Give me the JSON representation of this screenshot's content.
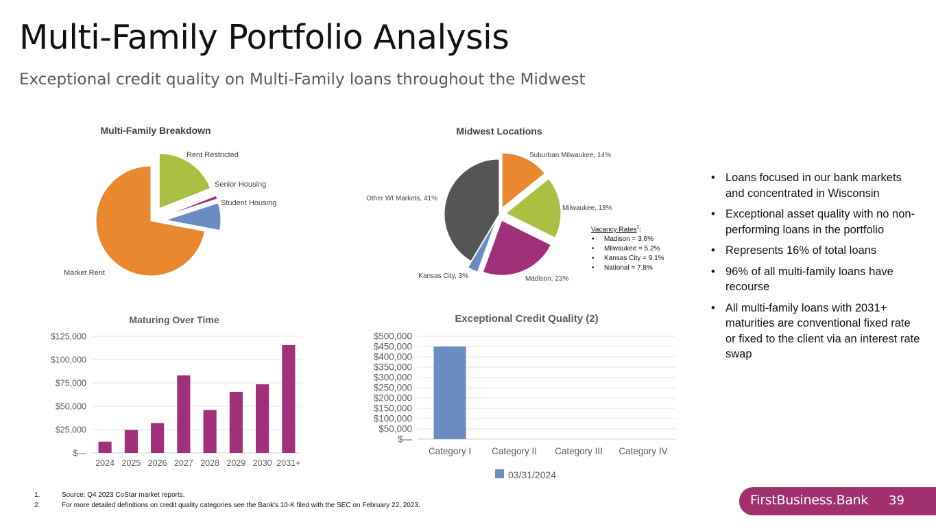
{
  "slide": {
    "title": "Multi-Family Portfolio Analysis",
    "subtitle": "Exceptional credit quality on Multi-Family loans throughout the Midwest",
    "page_number": "39",
    "brand": "FirstBusiness.Bank"
  },
  "bullets": [
    "Loans focused in our bank markets and concentrated in Wisconsin",
    "Exceptional asset quality with no non-performing loans in the portfolio",
    "Represents 16% of total loans",
    "96% of all multi-family loans have recourse",
    "All multi-family loans with 2031+ maturities are conventional fixed rate or fixed to the client via an interest rate swap"
  ],
  "vacancy": {
    "heading": "Vacancy Rates",
    "superscript": "1",
    "heading_suffix": ":",
    "items": [
      "Madison = 3.6%",
      "Milwaukee = 5.2%",
      "Kansas City = 9.1%",
      "National = 7.8%"
    ]
  },
  "footnotes": [
    {
      "num": "1.",
      "text": "Source: Q4 2023 CoStar market reports."
    },
    {
      "num": "2.",
      "text": "For more detailed definitions on credit quality categories see the Bank's 10-K filed with the SEC on February 22, 2023."
    }
  ],
  "colors": {
    "orange": "#e8872e",
    "green": "#a9c043",
    "purple": "#a0307a",
    "blue": "#6b8cc0",
    "gray": "#555555",
    "brand": "#a1306f"
  },
  "chart_data": [
    {
      "type": "pie",
      "title": "Multi-Family Breakdown",
      "categories": [
        "Rent Restricted",
        "Senior Housing",
        "Student Housing",
        "Market Rent"
      ],
      "values": [
        19,
        1,
        8,
        72
      ],
      "colors": [
        "#a9c043",
        "#a0307a",
        "#6b8cc0",
        "#e8872e"
      ]
    },
    {
      "type": "pie",
      "title": "Midwest Locations",
      "categories": [
        "Suburban Milwaukee",
        "Milwaukee",
        "Madison",
        "Kansas City",
        "Other WI Markets"
      ],
      "values": [
        14,
        18,
        23,
        3,
        41
      ],
      "labels": [
        "Suburban Milwaukee, 14%",
        "Milwaukee, 18%",
        "Madison, 23%",
        "Kansas City, 3%",
        "Other WI Markets, 41%"
      ],
      "colors": [
        "#e8872e",
        "#a9c043",
        "#a0307a",
        "#6b8cc0",
        "#555555"
      ]
    },
    {
      "type": "bar",
      "title": "Maturing Over Time",
      "categories": [
        "2024",
        "2025",
        "2026",
        "2027",
        "2028",
        "2029",
        "2030",
        "2031+"
      ],
      "values": [
        12000,
        24500,
        32000,
        83000,
        46000,
        65500,
        73500,
        115500
      ],
      "ylim": [
        0,
        125000
      ],
      "yticks": [
        "$—",
        "$25,000",
        "$50,000",
        "$75,000",
        "$100,000",
        "$125,000"
      ],
      "color": "#a0307a"
    },
    {
      "type": "bar",
      "title": "Exceptional Credit Quality (2)",
      "categories": [
        "Category I",
        "Category II",
        "Category III",
        "Category IV"
      ],
      "values": [
        450000,
        0,
        0,
        0
      ],
      "ylim": [
        0,
        500000
      ],
      "yticks": [
        "$—",
        "$50,000",
        "$100,000",
        "$150,000",
        "$200,000",
        "$250,000",
        "$300,000",
        "$350,000",
        "$400,000",
        "$450,000",
        "$500,000"
      ],
      "legend": "03/31/2024",
      "color": "#6b8cc0"
    }
  ]
}
